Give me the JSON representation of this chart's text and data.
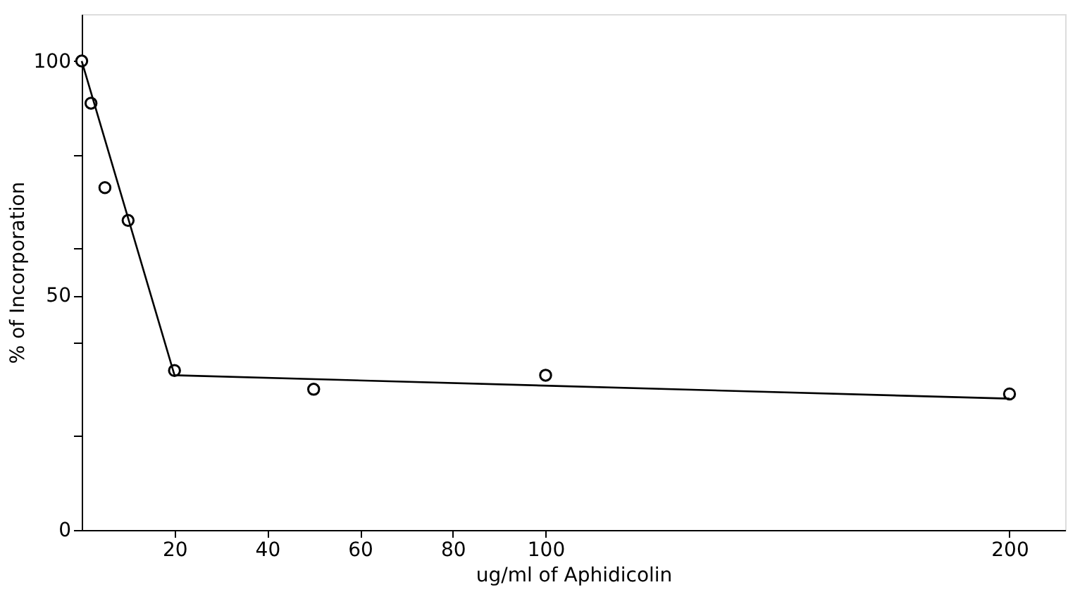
{
  "chart_data": {
    "type": "scatter",
    "xlabel": "ug/ml of Aphidicolin",
    "ylabel": "% of Incorporation",
    "xlim": [
      0,
      212
    ],
    "ylim": [
      0,
      110
    ],
    "xticks": [
      20,
      40,
      60,
      80,
      100,
      200
    ],
    "yticks": [
      0,
      {
        "value": 20,
        "label": null
      },
      {
        "value": 40,
        "label": null
      },
      50,
      {
        "value": 60,
        "label": null
      },
      {
        "value": 80,
        "label": null
      },
      100
    ],
    "grid": false,
    "series": [
      {
        "color": "#000000",
        "marker": "circle",
        "x": [
          0,
          2,
          5,
          10,
          20,
          50,
          100,
          200
        ],
        "values": [
          100,
          91,
          73,
          66,
          34,
          30,
          33,
          29
        ]
      },
      {
        "type": "line",
        "color": "#000000",
        "marker": "none",
        "line_style": "solid",
        "x": [
          0,
          20,
          200
        ],
        "values": [
          100,
          33,
          28
        ]
      }
    ]
  }
}
